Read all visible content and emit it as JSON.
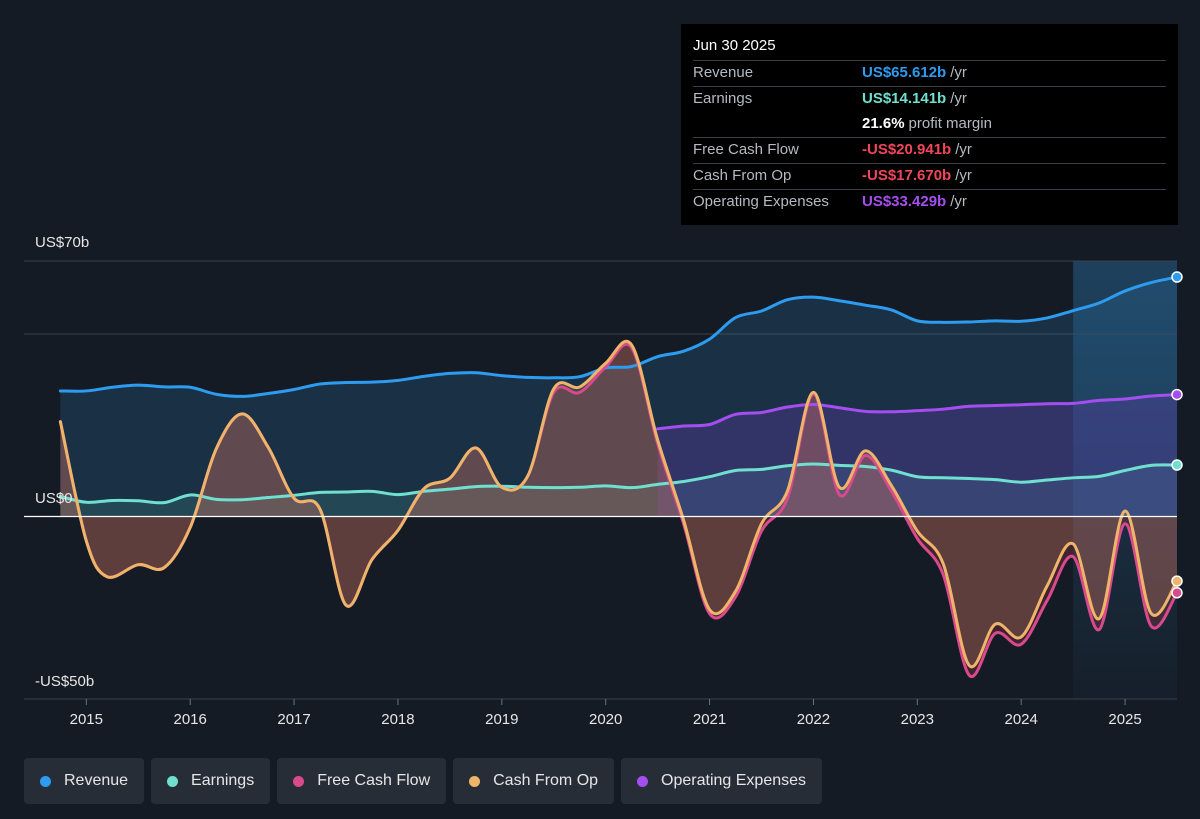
{
  "tooltip": {
    "date": "Jun 30 2025",
    "rows": [
      {
        "label": "Revenue",
        "value": "US$65.612b",
        "unit": "/yr",
        "color": "#2d9cf0"
      },
      {
        "label": "Earnings",
        "value": "US$14.141b",
        "unit": "/yr",
        "color": "#6fe0d0"
      },
      {
        "label": "",
        "value": "21.6%",
        "unit": "profit margin",
        "color": "#ffffff"
      },
      {
        "label": "Free Cash Flow",
        "value": "-US$20.941b",
        "unit": "/yr",
        "color": "#f0465a"
      },
      {
        "label": "Cash From Op",
        "value": "-US$17.670b",
        "unit": "/yr",
        "color": "#f0465a"
      },
      {
        "label": "Operating Expenses",
        "value": "US$33.429b",
        "unit": "/yr",
        "color": "#a54ef0"
      }
    ]
  },
  "legend": [
    {
      "label": "Revenue",
      "color": "#2d9cf0"
    },
    {
      "label": "Earnings",
      "color": "#6fe0d0"
    },
    {
      "label": "Free Cash Flow",
      "color": "#d84a8c"
    },
    {
      "label": "Cash From Op",
      "color": "#eeb46a"
    },
    {
      "label": "Operating Expenses",
      "color": "#a54ef0"
    }
  ],
  "chart_data": {
    "type": "line",
    "ylabel_top": "US$70b",
    "ylabel_zero": "US$0",
    "ylabel_bottom": "-US$50b",
    "ylim": [
      -50,
      70
    ],
    "xlim": [
      2014.4,
      2025.5
    ],
    "x_ticks": [
      "2015",
      "2016",
      "2017",
      "2018",
      "2019",
      "2020",
      "2021",
      "2022",
      "2023",
      "2024",
      "2025"
    ],
    "series": [
      {
        "name": "Revenue",
        "color": "#2d9cf0",
        "x": [
          2014.75,
          2015.0,
          2015.25,
          2015.5,
          2015.75,
          2016.0,
          2016.25,
          2016.5,
          2016.75,
          2017.0,
          2017.25,
          2017.5,
          2017.75,
          2018.0,
          2018.25,
          2018.5,
          2018.75,
          2019.0,
          2019.25,
          2019.5,
          2019.75,
          2020.0,
          2020.25,
          2020.5,
          2020.75,
          2021.0,
          2021.25,
          2021.5,
          2021.75,
          2022.0,
          2022.25,
          2022.5,
          2022.75,
          2023.0,
          2023.25,
          2023.5,
          2023.75,
          2024.0,
          2024.25,
          2024.5,
          2024.75,
          2025.0,
          2025.25,
          2025.5
        ],
        "y": [
          34.4,
          34.4,
          35.4,
          36.0,
          35.5,
          35.4,
          33.5,
          32.9,
          33.7,
          34.8,
          36.3,
          36.7,
          36.8,
          37.3,
          38.4,
          39.2,
          39.4,
          38.6,
          38.1,
          38.0,
          38.3,
          40.7,
          41.1,
          43.8,
          45.3,
          48.6,
          54.5,
          56.3,
          59.4,
          60.1,
          59.1,
          57.9,
          56.6,
          53.6,
          53.2,
          53.3,
          53.6,
          53.5,
          54.4,
          56.4,
          58.5,
          61.8,
          64.1,
          65.6
        ]
      },
      {
        "name": "Earnings",
        "color": "#6fe0d0",
        "x": [
          2014.75,
          2015.0,
          2015.25,
          2015.5,
          2015.75,
          2016.0,
          2016.25,
          2016.5,
          2016.75,
          2017.0,
          2017.25,
          2017.5,
          2017.75,
          2018.0,
          2018.25,
          2018.5,
          2018.75,
          2019.0,
          2019.25,
          2019.5,
          2019.75,
          2020.0,
          2020.25,
          2020.5,
          2020.75,
          2021.0,
          2021.25,
          2021.5,
          2021.75,
          2022.0,
          2022.25,
          2022.5,
          2022.75,
          2023.0,
          2023.25,
          2023.5,
          2023.75,
          2024.0,
          2024.25,
          2024.5,
          2024.75,
          2025.0,
          2025.25,
          2025.5
        ],
        "y": [
          5.5,
          3.9,
          4.4,
          4.3,
          3.8,
          5.9,
          4.7,
          4.6,
          5.2,
          5.8,
          6.6,
          6.7,
          6.9,
          6.0,
          6.9,
          7.5,
          8.2,
          8.3,
          8.0,
          7.9,
          8.0,
          8.4,
          7.9,
          8.8,
          9.6,
          10.9,
          12.6,
          12.9,
          13.9,
          14.4,
          14.0,
          13.7,
          12.7,
          10.9,
          10.6,
          10.4,
          10.1,
          9.4,
          10.0,
          10.6,
          11.0,
          12.6,
          14.0,
          14.1
        ]
      },
      {
        "name": "Operating Expenses",
        "color": "#a54ef0",
        "x": [
          2020.5,
          2020.75,
          2021.0,
          2021.25,
          2021.5,
          2021.75,
          2022.0,
          2022.25,
          2022.5,
          2022.75,
          2023.0,
          2023.25,
          2023.5,
          2023.75,
          2024.0,
          2024.25,
          2024.5,
          2024.75,
          2025.0,
          2025.25,
          2025.5
        ],
        "y": [
          24.0,
          24.8,
          25.2,
          28.0,
          28.5,
          30.0,
          30.7,
          29.8,
          28.8,
          28.7,
          29.0,
          29.4,
          30.2,
          30.4,
          30.6,
          30.9,
          31.0,
          31.8,
          32.2,
          33.0,
          33.4
        ]
      },
      {
        "name": "Free Cash Flow",
        "color": "#d84a8c",
        "x": [
          2014.75,
          2015.0,
          2015.2,
          2015.5,
          2015.75,
          2016.0,
          2016.25,
          2016.5,
          2016.75,
          2017.0,
          2017.25,
          2017.5,
          2017.75,
          2018.0,
          2018.25,
          2018.5,
          2018.75,
          2019.0,
          2019.25,
          2019.5,
          2019.75,
          2020.0,
          2020.25,
          2020.5,
          2020.75,
          2021.0,
          2021.25,
          2021.5,
          2021.75,
          2022.0,
          2022.25,
          2022.5,
          2022.75,
          2023.0,
          2023.25,
          2023.5,
          2023.75,
          2024.0,
          2024.25,
          2024.5,
          2024.75,
          2025.0,
          2025.25,
          2025.5
        ],
        "y": [
          26.0,
          -6.7,
          -16.5,
          -13.2,
          -14.0,
          -3.0,
          18.5,
          28.1,
          19.0,
          5.0,
          2.0,
          -24.3,
          -11.8,
          -3.8,
          7.6,
          10.5,
          18.8,
          8.0,
          11.1,
          34.0,
          34.0,
          41.0,
          46.2,
          20.0,
          -2.0,
          -26.6,
          -22.0,
          -4.0,
          5.0,
          33.5,
          6.0,
          16.7,
          7.0,
          -6.0,
          -16.0,
          -43.5,
          -32.0,
          -35.0,
          -23.0,
          -11.0,
          -31.0,
          -2.0,
          -30.0,
          -20.9
        ]
      },
      {
        "name": "Cash From Op",
        "color": "#eeb46a",
        "x": [
          2014.75,
          2015.0,
          2015.2,
          2015.5,
          2015.75,
          2016.0,
          2016.25,
          2016.5,
          2016.75,
          2017.0,
          2017.25,
          2017.5,
          2017.75,
          2018.0,
          2018.25,
          2018.5,
          2018.75,
          2019.0,
          2019.25,
          2019.5,
          2019.75,
          2020.0,
          2020.25,
          2020.5,
          2020.75,
          2021.0,
          2021.25,
          2021.5,
          2021.75,
          2022.0,
          2022.25,
          2022.5,
          2022.75,
          2023.0,
          2023.25,
          2023.5,
          2023.75,
          2024.0,
          2024.25,
          2024.5,
          2024.75,
          2025.0,
          2025.25,
          2025.5
        ],
        "y": [
          26.0,
          -6.7,
          -16.5,
          -13.2,
          -14.0,
          -3.0,
          18.5,
          28.1,
          19.0,
          5.0,
          2.0,
          -24.3,
          -11.8,
          -3.8,
          7.6,
          10.5,
          18.8,
          8.0,
          11.1,
          35.0,
          35.5,
          42.0,
          47.0,
          21.0,
          -1.0,
          -25.5,
          -20.5,
          -2.0,
          7.0,
          34.0,
          8.0,
          18.0,
          8.5,
          -4.0,
          -13.0,
          -40.8,
          -29.5,
          -33.0,
          -19.0,
          -7.5,
          -28.0,
          1.5,
          -26.5,
          -17.7
        ]
      }
    ]
  }
}
